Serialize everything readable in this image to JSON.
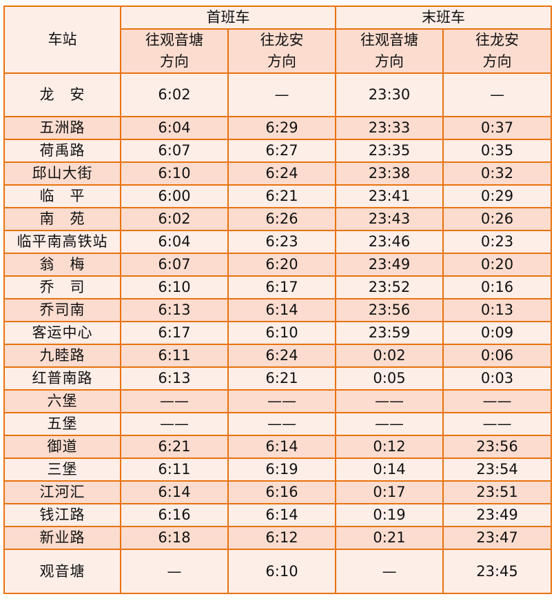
{
  "header": {
    "station": "车站",
    "first_train": "首班车",
    "last_train": "末班车",
    "dir_guanyintang": [
      "往观音塘",
      "方向"
    ],
    "dir_longan": [
      "往龙安",
      "方向"
    ]
  },
  "colors": {
    "border": "#e8720c",
    "light_row": "#fdeee8",
    "dark_row": "#fbdccf"
  },
  "rows": [
    {
      "station": "龙　安",
      "first_gyt": "6:02",
      "first_la": "—",
      "last_gyt": "23:30",
      "last_la": "—"
    },
    {
      "station": "五洲路",
      "first_gyt": "6:04",
      "first_la": "6:29",
      "last_gyt": "23:33",
      "last_la": "0:37"
    },
    {
      "station": "荷禹路",
      "first_gyt": "6:07",
      "first_la": "6:27",
      "last_gyt": "23:35",
      "last_la": "0:35"
    },
    {
      "station": "邱山大街",
      "first_gyt": "6:10",
      "first_la": "6:24",
      "last_gyt": "23:38",
      "last_la": "0:32"
    },
    {
      "station": "临　平",
      "first_gyt": "6:00",
      "first_la": "6:21",
      "last_gyt": "23:41",
      "last_la": "0:29"
    },
    {
      "station": "南　苑",
      "first_gyt": "6:02",
      "first_la": "6:26",
      "last_gyt": "23:43",
      "last_la": "0:26"
    },
    {
      "station": "临平南高铁站",
      "first_gyt": "6:04",
      "first_la": "6:23",
      "last_gyt": "23:46",
      "last_la": "0:23"
    },
    {
      "station": "翁　梅",
      "first_gyt": "6:07",
      "first_la": "6:20",
      "last_gyt": "23:49",
      "last_la": "0:20"
    },
    {
      "station": "乔　司",
      "first_gyt": "6:10",
      "first_la": "6:17",
      "last_gyt": "23:52",
      "last_la": "0:16"
    },
    {
      "station": "乔司南",
      "first_gyt": "6:13",
      "first_la": "6:14",
      "last_gyt": "23:56",
      "last_la": "0:13"
    },
    {
      "station": "客运中心",
      "first_gyt": "6:17",
      "first_la": "6:10",
      "last_gyt": "23:59",
      "last_la": "0:09"
    },
    {
      "station": "九睦路",
      "first_gyt": "6:11",
      "first_la": "6:24",
      "last_gyt": "0:02",
      "last_la": "0:06"
    },
    {
      "station": "红普南路",
      "first_gyt": "6:13",
      "first_la": "6:21",
      "last_gyt": "0:05",
      "last_la": "0:03"
    },
    {
      "station": "六堡",
      "first_gyt": "——",
      "first_la": "——",
      "last_gyt": "——",
      "last_la": "——"
    },
    {
      "station": "五堡",
      "first_gyt": "——",
      "first_la": "——",
      "last_gyt": "——",
      "last_la": "——"
    },
    {
      "station": "御道",
      "first_gyt": "6:21",
      "first_la": "6:14",
      "last_gyt": "0:12",
      "last_la": "23:56"
    },
    {
      "station": "三堡",
      "first_gyt": "6:11",
      "first_la": "6:19",
      "last_gyt": "0:14",
      "last_la": "23:54"
    },
    {
      "station": "江河汇",
      "first_gyt": "6:14",
      "first_la": "6:16",
      "last_gyt": "0:17",
      "last_la": "23:51"
    },
    {
      "station": "钱江路",
      "first_gyt": "6:16",
      "first_la": "6:14",
      "last_gyt": "0:19",
      "last_la": "23:49"
    },
    {
      "station": "新业路",
      "first_gyt": "6:18",
      "first_la": "6:12",
      "last_gyt": "0:21",
      "last_la": "23:47"
    },
    {
      "station": "观音塘",
      "first_gyt": "—",
      "first_la": "6:10",
      "last_gyt": "—",
      "last_la": "23:45"
    }
  ]
}
